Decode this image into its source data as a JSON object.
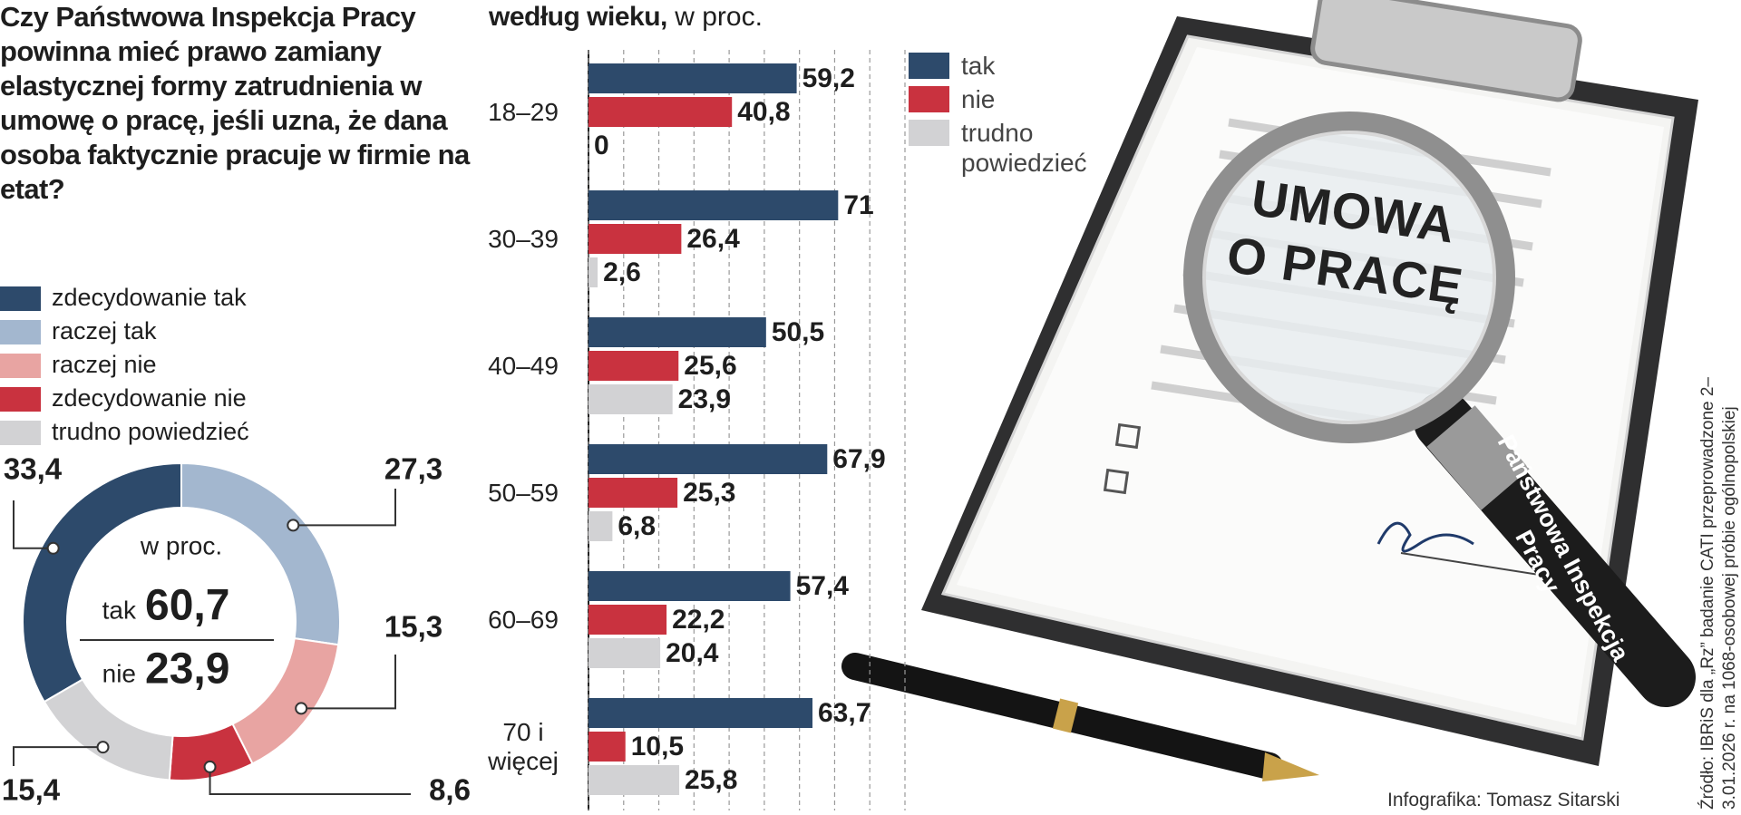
{
  "chart_data": [
    {
      "type": "donut",
      "title": "Czy Państwowa Inspekcja Pracy powinna mieć prawo zamiany elastycznej formy zatrudnienia w umowę o pracę, jeśli uzna, że dana osoba faktycznie pracuje w firmie na etat?",
      "categories": [
        "zdecydowanie tak",
        "raczej tak",
        "raczej nie",
        "zdecydowanie nie",
        "trudno powiedzieć"
      ],
      "values": [
        33.4,
        27.3,
        15.3,
        8.6,
        15.4
      ],
      "value_labels": [
        "33,4",
        "27,3",
        "15,3",
        "8,6",
        "15,4"
      ],
      "colors": [
        "#2d4a6b",
        "#a3b7cf",
        "#e8a4a2",
        "#c9323f",
        "#d2d2d4"
      ],
      "center_label": "w proc.",
      "summary": [
        {
          "name": "tak",
          "value": 60.7,
          "label": "60,7",
          "color": "#2d4a6b"
        },
        {
          "name": "nie",
          "value": 23.9,
          "label": "23,9",
          "color": "#c9323f"
        }
      ]
    },
    {
      "type": "bar",
      "orientation": "horizontal",
      "title": "według wieku,",
      "subtitle": "w proc.",
      "categories": [
        "18–29",
        "30–39",
        "40–49",
        "50–59",
        "60–69",
        "70 i więcej"
      ],
      "series": [
        {
          "name": "tak",
          "color": "#2d4a6b",
          "values": [
            59.2,
            71,
            50.5,
            67.9,
            57.4,
            63.7
          ],
          "value_labels": [
            "59,2",
            "71",
            "50,5",
            "67,9",
            "57,4",
            "63,7"
          ]
        },
        {
          "name": "nie",
          "color": "#c9323f",
          "values": [
            40.8,
            26.4,
            25.6,
            25.3,
            22.2,
            10.5
          ],
          "value_labels": [
            "40,8",
            "26,4",
            "25,6",
            "25,3",
            "22,2",
            "10,5"
          ]
        },
        {
          "name": "trudno powiedzieć",
          "color": "#d2d2d4",
          "values": [
            0,
            2.6,
            23.9,
            6.8,
            20.4,
            25.8
          ],
          "value_labels": [
            "0",
            "2,6",
            "23,9",
            "6,8",
            "20,4",
            "25,8"
          ]
        }
      ],
      "xlim": [
        0,
        90
      ],
      "xticks": [
        0,
        10,
        20,
        30,
        40,
        50,
        60,
        70,
        80,
        90
      ],
      "grid": true
    }
  ],
  "illustration": {
    "document_title": "UMOWA O PRACĘ",
    "magnifier_label": "Państwowa Inspekcja Pracy"
  },
  "footer": {
    "source": "Źródło: IBRiS dla „Rz” badanie CATI przeprowadzone 2–3.01.2026 r. na 1068-osobowej próbie ogólnopolskiej",
    "credit": "Infografika: Tomasz Sitarski"
  }
}
